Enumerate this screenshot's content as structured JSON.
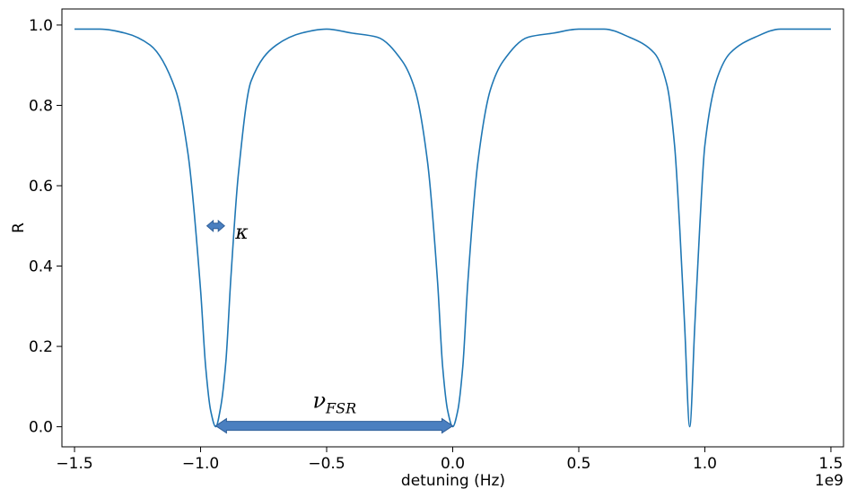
{
  "chart_data": {
    "type": "line",
    "xlabel": "detuning (Hz)",
    "ylabel": "R",
    "offset_text": "1e9",
    "xlim": [
      -1.55,
      1.55
    ],
    "ylim": [
      -0.05,
      1.04
    ],
    "x_ticks": [
      -1.5,
      -1.0,
      -0.5,
      0.0,
      0.5,
      1.0,
      1.5
    ],
    "x_tick_labels": [
      "−1.5",
      "−1.0",
      "−0.5",
      "0.0",
      "0.5",
      "1.0",
      "1.5"
    ],
    "y_ticks": [
      0.0,
      0.2,
      0.4,
      0.6,
      0.8,
      1.0
    ],
    "y_tick_labels": [
      "0.0",
      "0.2",
      "0.4",
      "0.6",
      "0.8",
      "1.0"
    ],
    "grid": false,
    "series": [
      {
        "color": "#1f77b4",
        "x": [
          -1.5,
          -1.4,
          -1.3,
          -1.2,
          -1.1,
          -1.05,
          -1.0,
          -0.98,
          -0.96,
          -0.94,
          -0.92,
          -0.9,
          -0.88,
          -0.85,
          -0.8,
          -0.7,
          -0.6,
          -0.5,
          -0.4,
          -0.3,
          -0.2,
          -0.15,
          -0.1,
          -0.06,
          -0.04,
          -0.02,
          0.0,
          0.02,
          0.04,
          0.06,
          0.1,
          0.15,
          0.2,
          0.3,
          0.4,
          0.5,
          0.6,
          0.7,
          0.8,
          0.85,
          0.88,
          0.9,
          0.92,
          0.94,
          0.96,
          0.98,
          1.0,
          1.05,
          1.1,
          1.2,
          1.3,
          1.4,
          1.5
        ],
        "y": [
          0.99,
          0.99,
          0.98,
          0.95,
          0.84,
          0.68,
          0.34,
          0.15,
          0.04,
          0.0,
          0.05,
          0.16,
          0.37,
          0.63,
          0.86,
          0.95,
          0.98,
          0.99,
          0.98,
          0.97,
          0.91,
          0.84,
          0.66,
          0.36,
          0.15,
          0.04,
          0.0,
          0.04,
          0.15,
          0.36,
          0.66,
          0.84,
          0.91,
          0.97,
          0.98,
          0.99,
          0.99,
          0.97,
          0.93,
          0.85,
          0.7,
          0.5,
          0.25,
          0.0,
          0.25,
          0.5,
          0.7,
          0.87,
          0.93,
          0.97,
          0.99,
          0.99,
          0.99
        ]
      }
    ],
    "annotations": [
      {
        "type": "double-arrow",
        "x_start": -0.975,
        "x_end": -0.905,
        "y": 0.5,
        "label": "κ",
        "color": "#4a7fc0"
      },
      {
        "type": "double-arrow",
        "x_start": -0.94,
        "x_end": 0.0,
        "y": 0.0,
        "label": "ν",
        "label_sub": "FSR",
        "color": "#4a7fc0"
      }
    ]
  }
}
